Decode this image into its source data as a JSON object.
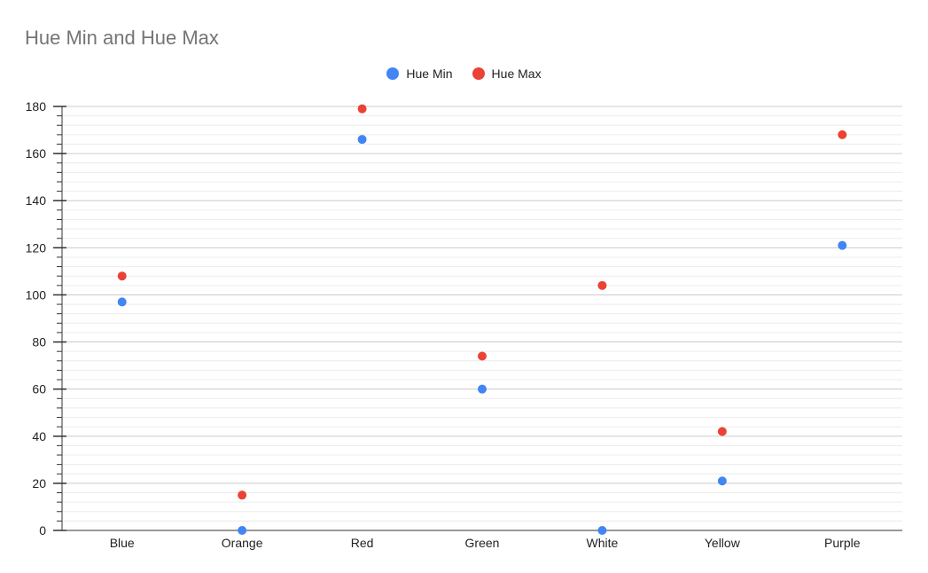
{
  "chart_data": {
    "type": "scatter",
    "title": "Hue Min and Hue Max",
    "xlabel": "",
    "ylabel": "",
    "categories": [
      "Blue",
      "Orange",
      "Red",
      "Green",
      "White",
      "Yellow",
      "Purple"
    ],
    "ylim": [
      0,
      180
    ],
    "yticks": [
      0,
      20,
      40,
      60,
      80,
      100,
      120,
      140,
      160,
      180
    ],
    "grid": true,
    "legend_position": "top",
    "series": [
      {
        "name": "Hue Min",
        "color": "#4285f4",
        "values": [
          97,
          0,
          166,
          60,
          0,
          21,
          121
        ]
      },
      {
        "name": "Hue Max",
        "color": "#ea4335",
        "values": [
          108,
          15,
          179,
          74,
          104,
          42,
          168
        ]
      }
    ]
  }
}
